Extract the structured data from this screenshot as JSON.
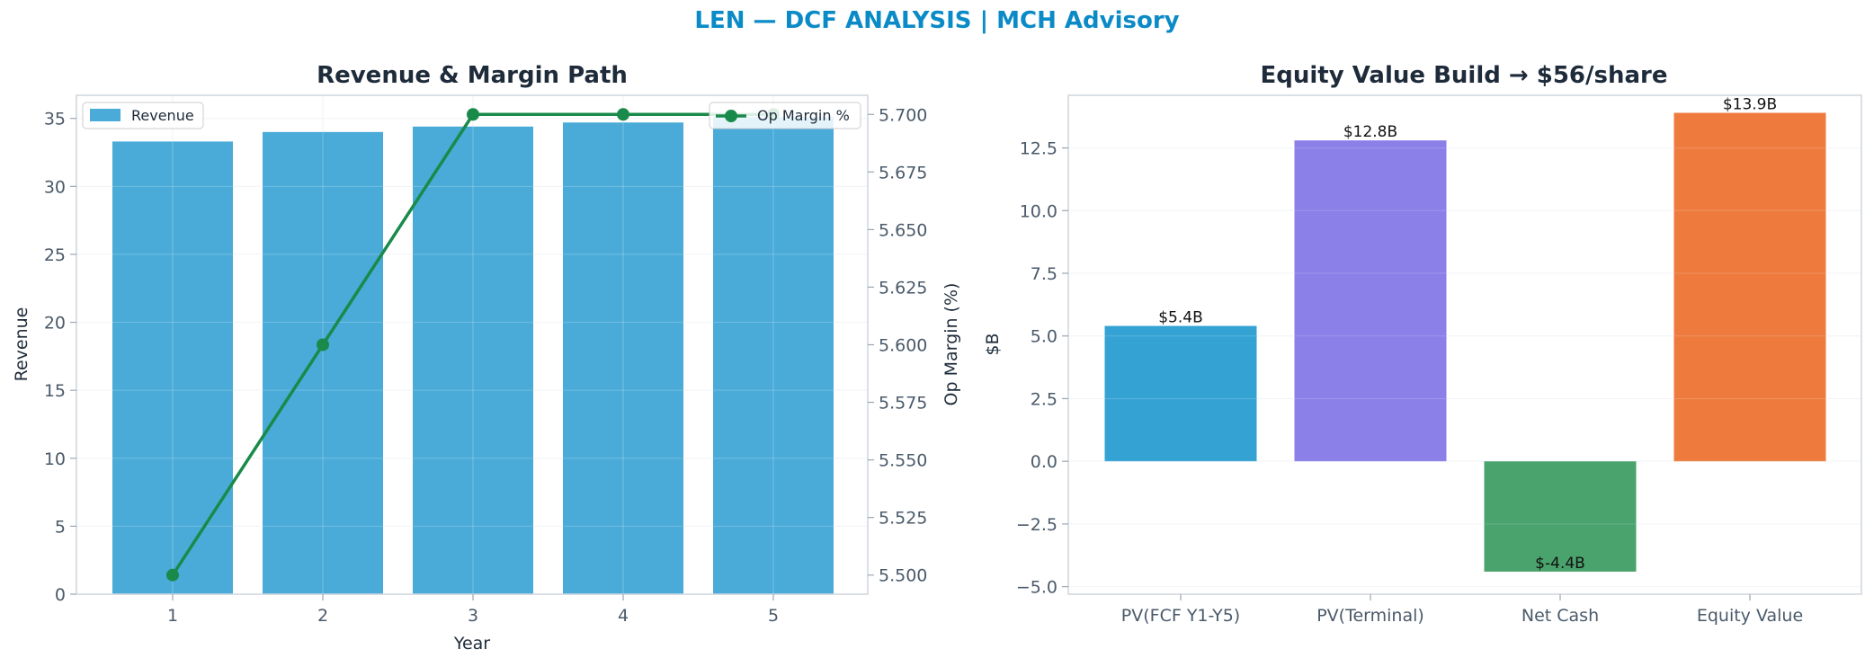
{
  "suptitle": "LEN — DCF ANALYSIS | MCH Advisory",
  "colors": {
    "title": "#0a8ac6",
    "revenue_bar": "#4aabd8",
    "margin_line": "#1a8a4a",
    "pv_fcf": "#34a3d4",
    "pv_terminal": "#8b7fe8",
    "net_cash": "#4aa36c",
    "equity_value": "#ee7b3d",
    "axis_text": "#4a5a6a",
    "dark_text": "#1e2b3a"
  },
  "chart_data": [
    {
      "type": "bar",
      "title": "Revenue & Margin Path",
      "xlabel": "Year",
      "ylabel": "Revenue",
      "y2label": "Op Margin (%)",
      "categories": [
        "1",
        "2",
        "3",
        "4",
        "5"
      ],
      "ylim": [
        0,
        36.7
      ],
      "y2lim": [
        5.4917,
        5.7083
      ],
      "yticks": [
        "0",
        "5",
        "10",
        "15",
        "20",
        "25",
        "30",
        "35"
      ],
      "y2ticks": [
        "5.500",
        "5.525",
        "5.550",
        "5.575",
        "5.600",
        "5.625",
        "5.650",
        "5.675",
        "5.700"
      ],
      "grid": true,
      "series": [
        {
          "name": "Revenue",
          "type": "bar",
          "axis": "left",
          "values": [
            33.3,
            34.0,
            34.4,
            34.7,
            35.1
          ]
        },
        {
          "name": "Op Margin %",
          "type": "line",
          "axis": "right",
          "values": [
            5.5,
            5.6,
            5.7,
            5.7,
            5.7
          ]
        }
      ],
      "legend": {
        "left_position": "top-left",
        "right_position": "top-right"
      }
    },
    {
      "type": "bar",
      "title": "Equity Value Build → $56/share",
      "xlabel": "",
      "ylabel": "$B",
      "categories": [
        "PV(FCF Y1-Y5)",
        "PV(Terminal)",
        "Net Cash",
        "Equity Value"
      ],
      "values": [
        5.4,
        12.8,
        -4.4,
        13.9
      ],
      "data_labels": [
        "$5.4B",
        "$12.8B",
        "$-4.4B",
        "$13.9B"
      ],
      "ylim": [
        -5.3,
        14.6
      ],
      "yticks": [
        "−5.0",
        "−2.5",
        "0.0",
        "2.5",
        "5.0",
        "7.5",
        "10.0",
        "12.5"
      ],
      "grid": true
    }
  ]
}
